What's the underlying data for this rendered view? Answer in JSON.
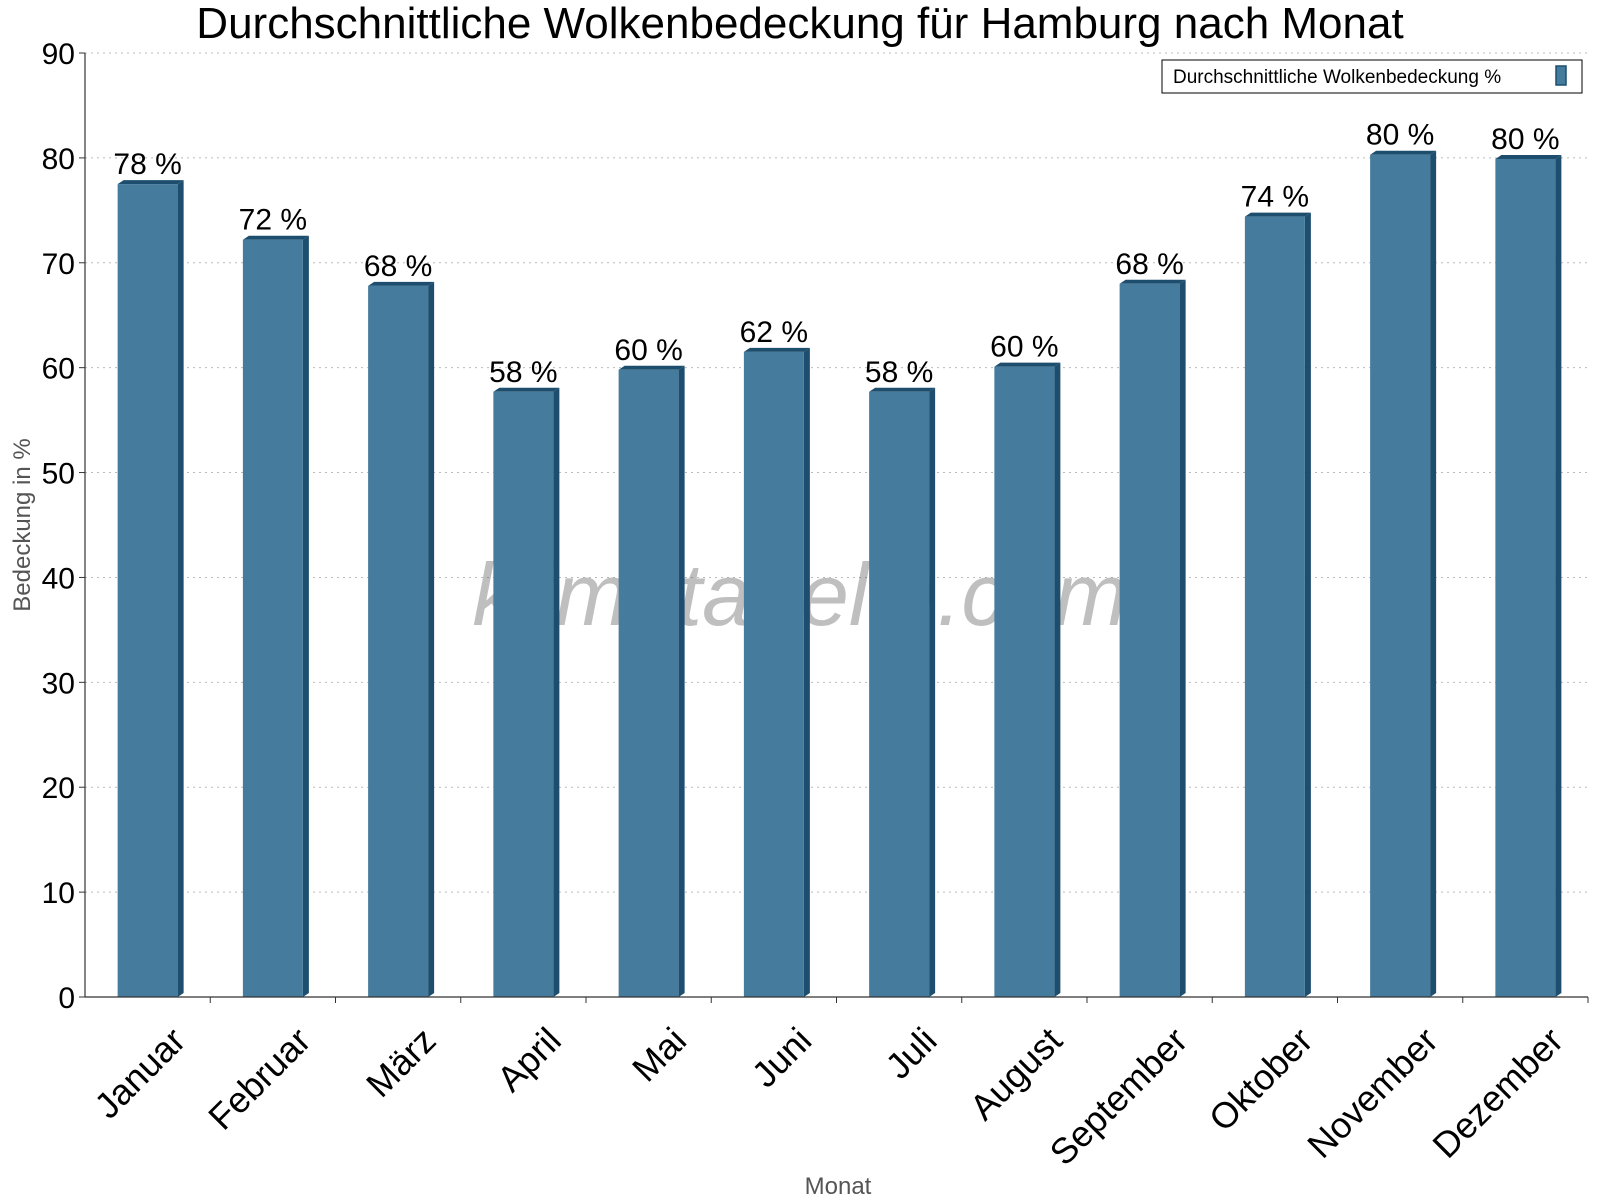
{
  "chart_data": {
    "type": "bar",
    "title": "Durchschnittliche Wolkenbedeckung für Hamburg nach Monat",
    "xlabel": "Monat",
    "ylabel": "Bedeckung in %",
    "ylim": [
      0,
      90
    ],
    "yticks": [
      0,
      10,
      20,
      30,
      40,
      50,
      60,
      70,
      80,
      90
    ],
    "grid": true,
    "legend_position": "top-right",
    "categories": [
      "Januar",
      "Februar",
      "März",
      "April",
      "Mai",
      "Juni",
      "Juli",
      "August",
      "September",
      "Oktober",
      "November",
      "Dezember"
    ],
    "series": [
      {
        "name": "Durchschnittliche Wolkenbedeckung %",
        "values": [
          77.5,
          72.2,
          67.8,
          57.7,
          59.8,
          61.5,
          57.7,
          60.1,
          68.0,
          74.4,
          80.3,
          79.9
        ],
        "labels": [
          "78 %",
          "72 %",
          "68 %",
          "58 %",
          "60 %",
          "62 %",
          "58 %",
          "60 %",
          "68 %",
          "74 %",
          "80 %",
          "80 %"
        ]
      }
    ],
    "watermark": "klimatabelle.com",
    "colors": {
      "bar": "#457b9d",
      "bar_edge": "#1d4e6e",
      "grid": "#bbbbbb",
      "axis": "#333333"
    }
  }
}
